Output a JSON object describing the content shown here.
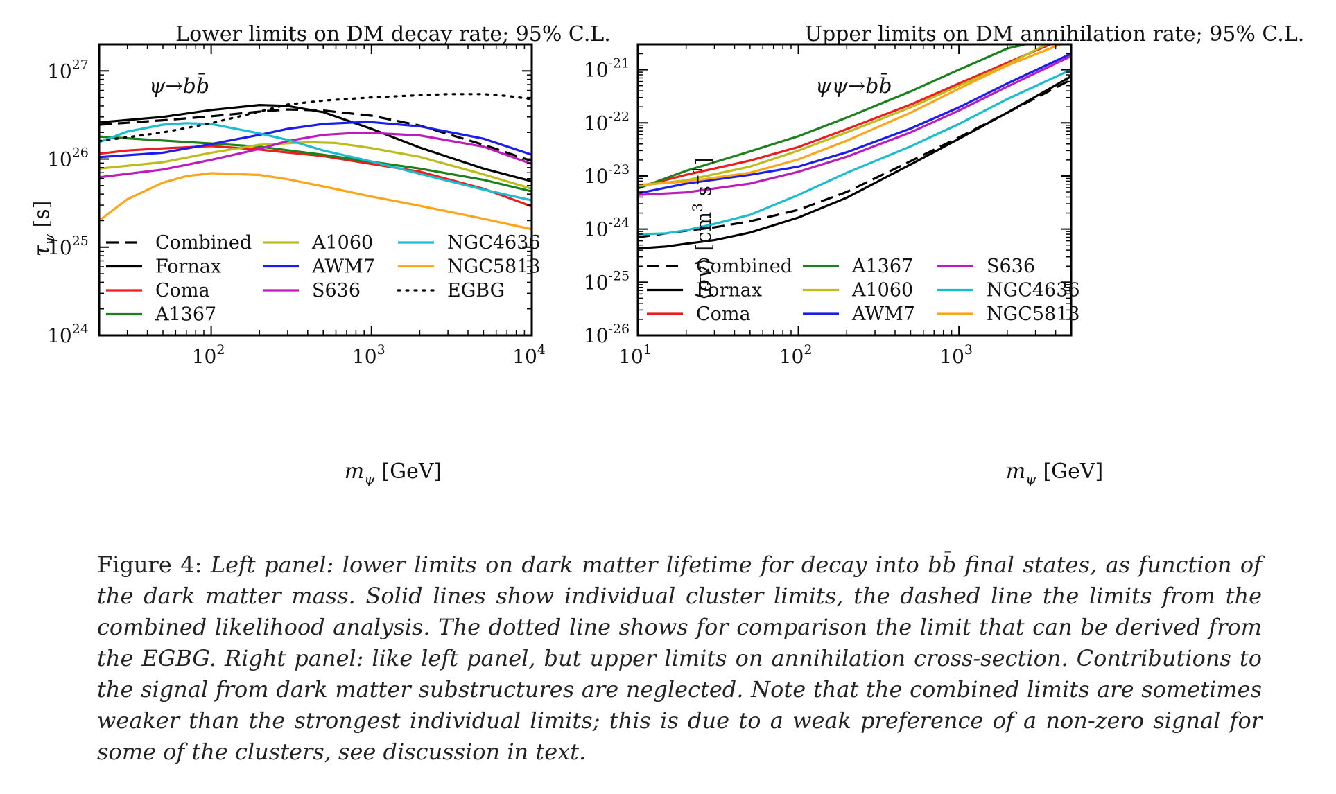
{
  "figure": {
    "caption_label": "Figure 4:",
    "caption_text": "Left panel: lower limits on dark matter lifetime for decay into bb̄ final states, as function of the dark matter mass. Solid lines show individual cluster limits, the dashed line the limits from the combined likelihood analysis. The dotted line shows for comparison the limit that can be derived from the EGBG. Right panel: like left panel, but upper limits on annihilation cross-section. Contributions to the signal from dark matter substructures are neglected. Note that the combined limits are sometimes weaker than the strongest individual limits; this is due to a weak preference of a non-zero signal for some of the clusters, see discussion in text."
  },
  "colors": {
    "Combined": "#000000",
    "Fornax": "#000000",
    "Coma": "#ee1c1c",
    "A1367": "#1c801c",
    "A1060": "#bcbc1c",
    "AWM7": "#1c1cee",
    "S636": "#bc1cbc",
    "NGC4636": "#1cbcd0",
    "NGC5813": "#ffa51c",
    "EGBG": "#000000"
  },
  "chart_data": [
    {
      "type": "line",
      "title": "Lower limits on DM decay rate; 95% C.L.",
      "annotation": "ψ→bb̄",
      "xlabel": "mψ [GeV]",
      "ylabel": "τψ [s]",
      "xscale": "log",
      "yscale": "log",
      "xlim": [
        20,
        10000
      ],
      "ylim": [
        1e+24,
        2e+27
      ],
      "xticks": [
        {
          "v": 100,
          "m": "10",
          "e": "2"
        },
        {
          "v": 1000,
          "m": "10",
          "e": "3"
        },
        {
          "v": 10000,
          "m": "10",
          "e": "4"
        }
      ],
      "yticks": [
        {
          "v": 1e+24,
          "m": "10",
          "e": "24"
        },
        {
          "v": 1e+25,
          "m": "10",
          "e": "25"
        },
        {
          "v": 1e+26,
          "m": "10",
          "e": "26"
        },
        {
          "v": 1e+27,
          "m": "10",
          "e": "27"
        }
      ],
      "legend_position": "lower-left",
      "legend_columns": 3,
      "series": [
        {
          "name": "Combined",
          "style": "dashed",
          "points": [
            [
              20,
              2.45e+26
            ],
            [
              50,
              2.75e+26
            ],
            [
              100,
              3.05e+26
            ],
            [
              200,
              3.45e+26
            ],
            [
              300,
              3.65e+26
            ],
            [
              500,
              3.55e+26
            ],
            [
              1000,
              3.1e+26
            ],
            [
              2000,
              2.4e+26
            ],
            [
              5000,
              1.45e+26
            ],
            [
              10000,
              9.5e+25
            ]
          ]
        },
        {
          "name": "Fornax",
          "style": "solid",
          "points": [
            [
              20,
              2.6e+26
            ],
            [
              50,
              3e+26
            ],
            [
              100,
              3.6e+26
            ],
            [
              200,
              4.1e+26
            ],
            [
              300,
              4e+26
            ],
            [
              500,
              3.4e+26
            ],
            [
              1000,
              2.2e+26
            ],
            [
              2000,
              1.35e+26
            ],
            [
              5000,
              7.8e+25
            ],
            [
              10000,
              5.6e+25
            ]
          ]
        },
        {
          "name": "Coma",
          "style": "solid",
          "points": [
            [
              20,
              1.15e+26
            ],
            [
              30,
              1.25e+26
            ],
            [
              50,
              1.32e+26
            ],
            [
              100,
              1.4e+26
            ],
            [
              200,
              1.28e+26
            ],
            [
              500,
              1.08e+26
            ],
            [
              1000,
              8.8e+25
            ],
            [
              2000,
              7.2e+25
            ],
            [
              5000,
              4.6e+25
            ],
            [
              10000,
              2.9e+25
            ]
          ]
        },
        {
          "name": "A1367",
          "style": "solid",
          "points": [
            [
              20,
              1.8e+26
            ],
            [
              50,
              1.62e+26
            ],
            [
              100,
              1.5e+26
            ],
            [
              200,
              1.38e+26
            ],
            [
              500,
              1.12e+26
            ],
            [
              1000,
              9.3e+25
            ],
            [
              2000,
              7.8e+25
            ],
            [
              5000,
              5.8e+25
            ],
            [
              10000,
              4.3e+25
            ]
          ]
        },
        {
          "name": "A1060",
          "style": "solid",
          "points": [
            [
              20,
              7.8e+25
            ],
            [
              50,
              9.2e+25
            ],
            [
              100,
              1.18e+26
            ],
            [
              200,
              1.45e+26
            ],
            [
              400,
              1.55e+26
            ],
            [
              600,
              1.52e+26
            ],
            [
              1000,
              1.33e+26
            ],
            [
              2000,
              1.06e+26
            ],
            [
              5000,
              6.7e+25
            ],
            [
              10000,
              4.6e+25
            ]
          ]
        },
        {
          "name": "AWM7",
          "style": "solid",
          "points": [
            [
              20,
              1.05e+26
            ],
            [
              50,
              1.18e+26
            ],
            [
              100,
              1.48e+26
            ],
            [
              200,
              1.88e+26
            ],
            [
              300,
              2.2e+26
            ],
            [
              500,
              2.5e+26
            ],
            [
              800,
              2.6e+26
            ],
            [
              1000,
              2.62e+26
            ],
            [
              2000,
              2.35e+26
            ],
            [
              5000,
              1.7e+26
            ],
            [
              10000,
              1.12e+26
            ]
          ]
        },
        {
          "name": "S636",
          "style": "solid",
          "points": [
            [
              20,
              6.2e+25
            ],
            [
              50,
              7.6e+25
            ],
            [
              100,
              9.8e+25
            ],
            [
              200,
              1.3e+26
            ],
            [
              300,
              1.6e+26
            ],
            [
              500,
              1.88e+26
            ],
            [
              800,
              1.98e+26
            ],
            [
              1000,
              1.98e+26
            ],
            [
              2000,
              1.85e+26
            ],
            [
              5000,
              1.38e+26
            ],
            [
              10000,
              8.8e+25
            ]
          ]
        },
        {
          "name": "NGC4636",
          "style": "solid",
          "points": [
            [
              20,
              1.55e+26
            ],
            [
              30,
              2.05e+26
            ],
            [
              50,
              2.45e+26
            ],
            [
              70,
              2.55e+26
            ],
            [
              100,
              2.5e+26
            ],
            [
              200,
              1.95e+26
            ],
            [
              300,
              1.65e+26
            ],
            [
              500,
              1.25e+26
            ],
            [
              1000,
              9.4e+25
            ],
            [
              2000,
              6.8e+25
            ],
            [
              5000,
              4.5e+25
            ],
            [
              10000,
              3.4e+25
            ]
          ]
        },
        {
          "name": "NGC5813",
          "style": "solid",
          "points": [
            [
              20,
              2e+25
            ],
            [
              30,
              3.5e+25
            ],
            [
              50,
              5.4e+25
            ],
            [
              70,
              6.4e+25
            ],
            [
              100,
              6.9e+25
            ],
            [
              200,
              6.6e+25
            ],
            [
              300,
              5.9e+25
            ],
            [
              500,
              4.9e+25
            ],
            [
              1000,
              3.75e+25
            ],
            [
              2000,
              2.95e+25
            ],
            [
              5000,
              2.1e+25
            ],
            [
              10000,
              1.6e+25
            ]
          ]
        },
        {
          "name": "EGBG",
          "style": "dotted",
          "points": [
            [
              20,
              1.6e+26
            ],
            [
              50,
              2e+26
            ],
            [
              100,
              2.55e+26
            ],
            [
              200,
              3.45e+26
            ],
            [
              300,
              4.15e+26
            ],
            [
              500,
              4.6e+26
            ],
            [
              1000,
              5e+26
            ],
            [
              2000,
              5.3e+26
            ],
            [
              3000,
              5.45e+26
            ],
            [
              5000,
              5.45e+26
            ],
            [
              7000,
              5.2e+26
            ],
            [
              10000,
              4.8e+26
            ]
          ]
        }
      ],
      "legend": [
        "Combined",
        "Fornax",
        "Coma",
        "A1367",
        "A1060",
        "AWM7",
        "S636",
        "NGC4636",
        "NGC5813",
        "EGBG"
      ]
    },
    {
      "type": "line",
      "title": "Upper limits on DM annihilation rate; 95% C.L.",
      "annotation": "ψψ→bb̄",
      "xlabel": "mψ [GeV]",
      "ylabel": "⟨σv⟩ [cm3 s−1]",
      "xscale": "log",
      "yscale": "log",
      "xlim": [
        10,
        5000
      ],
      "ylim": [
        1e-26,
        3e-21
      ],
      "xticks": [
        {
          "v": 10,
          "m": "10",
          "e": "1"
        },
        {
          "v": 100,
          "m": "10",
          "e": "2"
        },
        {
          "v": 1000,
          "m": "10",
          "e": "3"
        }
      ],
      "yticks": [
        {
          "v": 1e-26,
          "m": "10",
          "e": "-26"
        },
        {
          "v": 1e-25,
          "m": "10",
          "e": "-25"
        },
        {
          "v": 1e-24,
          "m": "10",
          "e": "-24"
        },
        {
          "v": 1e-23,
          "m": "10",
          "e": "-23"
        },
        {
          "v": 1e-22,
          "m": "10",
          "e": "-22"
        },
        {
          "v": 1e-21,
          "m": "10",
          "e": "-21"
        }
      ],
      "legend_position": "lower-left",
      "legend_columns": 3,
      "series": [
        {
          "name": "Combined",
          "style": "dashed",
          "points": [
            [
              10,
              7e-25
            ],
            [
              15,
              8.3e-25
            ],
            [
              20,
              9.3e-25
            ],
            [
              30,
              1.08e-24
            ],
            [
              50,
              1.4e-24
            ],
            [
              100,
              2.3e-24
            ],
            [
              200,
              5e-24
            ],
            [
              500,
              1.9e-23
            ],
            [
              1000,
              5.3e-23
            ],
            [
              2000,
              1.55e-22
            ],
            [
              5000,
              6.5e-22
            ]
          ]
        },
        {
          "name": "Fornax",
          "style": "solid",
          "points": [
            [
              10,
              4.3e-25
            ],
            [
              15,
              4.7e-25
            ],
            [
              20,
              5.3e-25
            ],
            [
              30,
              6.2e-25
            ],
            [
              50,
              8.6e-25
            ],
            [
              100,
              1.65e-24
            ],
            [
              200,
              3.9e-24
            ],
            [
              500,
              1.65e-23
            ],
            [
              1000,
              5e-23
            ],
            [
              2000,
              1.55e-22
            ],
            [
              5000,
              7.5e-22
            ]
          ]
        },
        {
          "name": "Coma",
          "style": "solid",
          "points": [
            [
              10,
              6.2e-24
            ],
            [
              20,
              1.05e-23
            ],
            [
              50,
              1.95e-23
            ],
            [
              100,
              3.5e-23
            ],
            [
              200,
              7.6e-23
            ],
            [
              500,
              2.2e-22
            ],
            [
              1000,
              5.5e-22
            ],
            [
              2000,
              1.35e-21
            ],
            [
              3700,
              3e-21
            ]
          ]
        },
        {
          "name": "A1367",
          "style": "solid",
          "points": [
            [
              10,
              5.8e-24
            ],
            [
              20,
              1.25e-23
            ],
            [
              50,
              2.9e-23
            ],
            [
              100,
              5.6e-23
            ],
            [
              200,
              1.25e-22
            ],
            [
              500,
              3.9e-22
            ],
            [
              1000,
              1e-21
            ],
            [
              2000,
              2.5e-21
            ],
            [
              2600,
              3e-21
            ]
          ]
        },
        {
          "name": "A1060",
          "style": "solid",
          "points": [
            [
              10,
              6.5e-24
            ],
            [
              20,
              8.3e-24
            ],
            [
              50,
              1.5e-23
            ],
            [
              100,
              3e-23
            ],
            [
              200,
              6.6e-23
            ],
            [
              500,
              1.95e-22
            ],
            [
              1000,
              5e-22
            ],
            [
              2000,
              1.25e-21
            ],
            [
              3500,
              3e-21
            ]
          ]
        },
        {
          "name": "AWM7",
          "style": "solid",
          "points": [
            [
              10,
              4.7e-24
            ],
            [
              20,
              7.2e-24
            ],
            [
              50,
              1.05e-23
            ],
            [
              100,
              1.5e-23
            ],
            [
              200,
              2.8e-23
            ],
            [
              500,
              7.8e-23
            ],
            [
              1000,
              1.95e-22
            ],
            [
              2000,
              5.5e-22
            ],
            [
              5000,
              2e-21
            ]
          ]
        },
        {
          "name": "S636",
          "style": "solid",
          "points": [
            [
              10,
              4.4e-24
            ],
            [
              20,
              4.9e-24
            ],
            [
              50,
              7.2e-24
            ],
            [
              100,
              1.2e-23
            ],
            [
              200,
              2.3e-23
            ],
            [
              500,
              6.6e-23
            ],
            [
              1000,
              1.7e-22
            ],
            [
              2000,
              4.8e-22
            ],
            [
              5000,
              1.8e-21
            ]
          ]
        },
        {
          "name": "NGC4636",
          "style": "solid",
          "points": [
            [
              10,
              8e-25
            ],
            [
              15,
              8.3e-25
            ],
            [
              20,
              9.5e-25
            ],
            [
              30,
              1.25e-24
            ],
            [
              50,
              1.85e-24
            ],
            [
              100,
              4.4e-24
            ],
            [
              200,
              1.15e-23
            ],
            [
              500,
              3.6e-23
            ],
            [
              1000,
              9.5e-23
            ],
            [
              2000,
              2.8e-22
            ],
            [
              5000,
              1e-21
            ]
          ]
        },
        {
          "name": "NGC5813",
          "style": "solid",
          "points": [
            [
              10,
              6.8e-24
            ],
            [
              20,
              7.8e-24
            ],
            [
              50,
              1.15e-23
            ],
            [
              100,
              2.05e-23
            ],
            [
              200,
              4.6e-23
            ],
            [
              500,
              1.55e-22
            ],
            [
              1000,
              4.4e-22
            ],
            [
              2000,
              1.2e-21
            ],
            [
              4300,
              3e-21
            ]
          ]
        }
      ],
      "legend": [
        "Combined",
        "Fornax",
        "Coma",
        "A1367",
        "A1060",
        "AWM7",
        "S636",
        "NGC4636",
        "NGC5813"
      ]
    }
  ]
}
